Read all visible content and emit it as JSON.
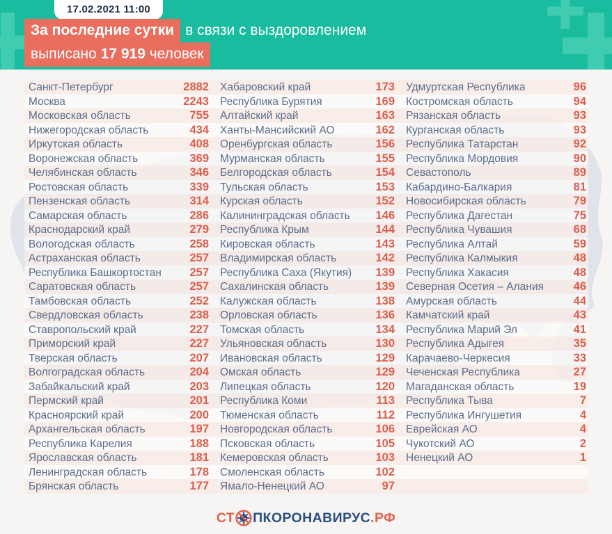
{
  "header": {
    "timestamp": "17.02.2021 11:00",
    "headline_highlight": "За последние сутки",
    "headline_rest": "в связи с выздоровлением",
    "line2_prefix": "выписано ",
    "line2_number": "17 919",
    "line2_suffix": " человек"
  },
  "chart_data": {
    "type": "table",
    "title": "За последние сутки в связи с выздоровлением выписано 17 919 человек",
    "date": "17.02.2021 11:00",
    "total_discharged": 17919,
    "value_meaning": "discharged recovered patients per region, last 24h",
    "columns": [
      {
        "rows": [
          {
            "name": "Санкт-Петербург",
            "value": 2882
          },
          {
            "name": "Москва",
            "value": 2243
          },
          {
            "name": "Московская область",
            "value": 755
          },
          {
            "name": "Нижегородская область",
            "value": 434
          },
          {
            "name": "Иркутская область",
            "value": 408
          },
          {
            "name": "Воронежская область",
            "value": 369
          },
          {
            "name": "Челябинская область",
            "value": 346
          },
          {
            "name": "Ростовская область",
            "value": 339
          },
          {
            "name": "Пензенская область",
            "value": 314
          },
          {
            "name": "Самарская область",
            "value": 286
          },
          {
            "name": "Краснодарский край",
            "value": 279
          },
          {
            "name": "Вологодская область",
            "value": 258
          },
          {
            "name": "Астраханская область",
            "value": 257
          },
          {
            "name": "Республика Башкортостан",
            "value": 257
          },
          {
            "name": "Саратовская область",
            "value": 257
          },
          {
            "name": "Тамбовская область",
            "value": 252
          },
          {
            "name": "Свердловская область",
            "value": 238
          },
          {
            "name": "Ставропольский край",
            "value": 227
          },
          {
            "name": "Приморский край",
            "value": 227
          },
          {
            "name": "Тверская область",
            "value": 207
          },
          {
            "name": "Волгоградская область",
            "value": 204
          },
          {
            "name": "Забайкальский край",
            "value": 203
          },
          {
            "name": "Пермский край",
            "value": 201
          },
          {
            "name": "Красноярский край",
            "value": 200
          },
          {
            "name": "Архангельская область",
            "value": 197
          },
          {
            "name": "Республика Карелия",
            "value": 188
          },
          {
            "name": "Ярославская область",
            "value": 181
          },
          {
            "name": "Ленинградская область",
            "value": 178
          },
          {
            "name": "Брянская область",
            "value": 177
          }
        ]
      },
      {
        "rows": [
          {
            "name": "Хабаровский край",
            "value": 173
          },
          {
            "name": "Республика Бурятия",
            "value": 169
          },
          {
            "name": "Алтайский край",
            "value": 163
          },
          {
            "name": "Ханты-Мансийский АО",
            "value": 162
          },
          {
            "name": "Оренбургская область",
            "value": 156
          },
          {
            "name": "Мурманская область",
            "value": 155
          },
          {
            "name": "Белгородская область",
            "value": 154
          },
          {
            "name": "Тульская область",
            "value": 153
          },
          {
            "name": "Курская область",
            "value": 152
          },
          {
            "name": "Калининградская область",
            "value": 146
          },
          {
            "name": "Республика Крым",
            "value": 144
          },
          {
            "name": "Кировская область",
            "value": 143
          },
          {
            "name": "Владимирская область",
            "value": 142
          },
          {
            "name": "Республика Саха (Якутия)",
            "value": 139
          },
          {
            "name": "Сахалинская область",
            "value": 139
          },
          {
            "name": "Калужская область",
            "value": 138
          },
          {
            "name": "Орловская область",
            "value": 136
          },
          {
            "name": "Томская область",
            "value": 134
          },
          {
            "name": "Ульяновская область",
            "value": 130
          },
          {
            "name": "Ивановская область",
            "value": 129
          },
          {
            "name": "Омская область",
            "value": 129
          },
          {
            "name": "Липецкая область",
            "value": 120
          },
          {
            "name": "Республика Коми",
            "value": 113
          },
          {
            "name": "Тюменская область",
            "value": 112
          },
          {
            "name": "Новгородская область",
            "value": 106
          },
          {
            "name": "Псковская область",
            "value": 105
          },
          {
            "name": "Кемеровская область",
            "value": 103
          },
          {
            "name": "Смоленская область",
            "value": 102
          },
          {
            "name": "Ямало-Ненецкий АО",
            "value": 97
          }
        ]
      },
      {
        "rows": [
          {
            "name": "Удмуртская Республика",
            "value": 96
          },
          {
            "name": "Костромская область",
            "value": 94
          },
          {
            "name": "Рязанская область",
            "value": 93
          },
          {
            "name": "Курганская область",
            "value": 93
          },
          {
            "name": "Республика Татарстан",
            "value": 92
          },
          {
            "name": "Республика Мордовия",
            "value": 90
          },
          {
            "name": "Севастополь",
            "value": 89
          },
          {
            "name": "Кабардино-Балкария",
            "value": 81
          },
          {
            "name": "Новосибирская область",
            "value": 79
          },
          {
            "name": "Республика Дагестан",
            "value": 75
          },
          {
            "name": "Республика Чувашия",
            "value": 68
          },
          {
            "name": "Республика Алтай",
            "value": 59
          },
          {
            "name": "Республика Калмыкия",
            "value": 48
          },
          {
            "name": "Республика Хакасия",
            "value": 48
          },
          {
            "name": "Северная Осетия – Алания",
            "value": 46
          },
          {
            "name": "Амурская область",
            "value": 44
          },
          {
            "name": "Камчатский край",
            "value": 43
          },
          {
            "name": "Республика Марий Эл",
            "value": 41
          },
          {
            "name": "Республика Адыгея",
            "value": 35
          },
          {
            "name": "Карачаево-Черкесия",
            "value": 33
          },
          {
            "name": "Чеченская Республика",
            "value": 27
          },
          {
            "name": "Магаданская область",
            "value": 19
          },
          {
            "name": "Республика Тыва",
            "value": 7
          },
          {
            "name": "Республика Ингушетия",
            "value": 4
          },
          {
            "name": "Еврейская АО",
            "value": 4
          },
          {
            "name": "Чукотский АО",
            "value": 2
          },
          {
            "name": "Ненецкий АО",
            "value": 1
          }
        ]
      }
    ]
  },
  "footer": {
    "logo_prefix": "СТ",
    "logo_middle": "ПКОРОНАВИРУС",
    "logo_suffix": ".РФ"
  },
  "colors": {
    "teal": "#19bc9e",
    "teal_cross": "#40ccb0",
    "coral_highlight": "#e96e5e",
    "number_red": "#dc5e4d",
    "label_slate": "#5c6d8c",
    "logo_navy": "#2b4f84",
    "background": "#f6f5f3",
    "stripe_pink": "#f8ece7"
  }
}
